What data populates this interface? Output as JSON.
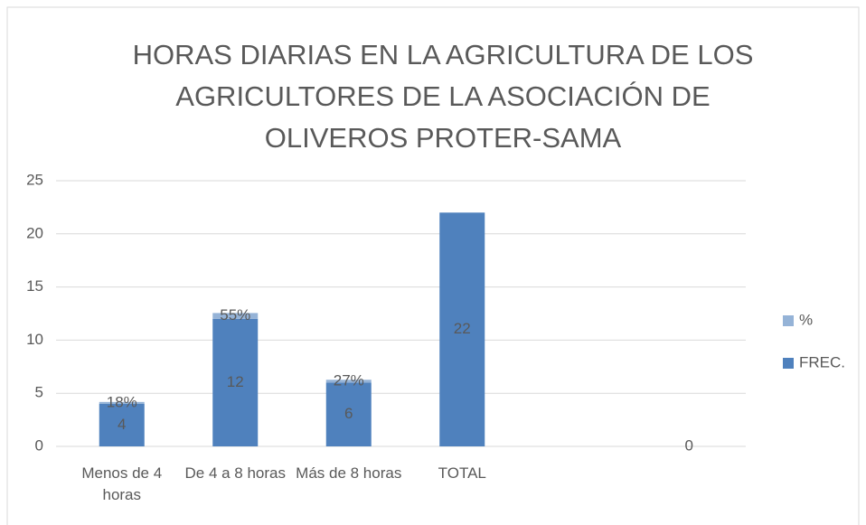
{
  "chart_data": {
    "type": "stacked_bar",
    "title": "HORAS DIARIAS EN LA AGRICULTURA DE LOS AGRICULTORES DE LA ASOCIACIÓN DE OLIVEROS PROTER-SAMA",
    "categories": [
      "Menos de 4 horas",
      "De 4 a 8 horas",
      "Más de 8 horas",
      "TOTAL",
      null,
      null
    ],
    "series": [
      {
        "name": "FREC.",
        "color": "#4f81bd",
        "values": [
          4,
          12,
          6,
          22,
          null,
          0
        ]
      },
      {
        "name": "%",
        "color": "#95b3d7",
        "values": [
          0.18,
          0.55,
          0.27,
          null,
          null,
          null
        ],
        "value_labels": [
          "18%",
          "55%",
          "27%",
          null,
          null,
          null
        ]
      }
    ],
    "ylim": [
      0,
      25
    ],
    "yticks": [
      0,
      5,
      10,
      15,
      20,
      25
    ],
    "grid": true,
    "legend": "right"
  }
}
